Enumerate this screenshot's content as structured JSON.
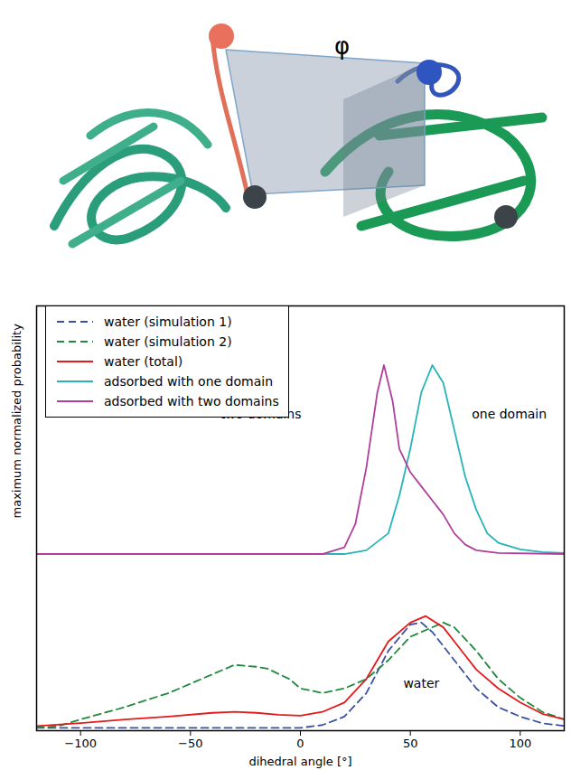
{
  "diagram": {
    "label": "φ"
  },
  "chart_data": {
    "type": "line",
    "xlabel": "dihedral angle [°]",
    "ylabel": "maximum normalized probability",
    "xlim": [
      -120,
      120
    ],
    "xticks": [
      -100,
      -50,
      0,
      50,
      100
    ],
    "ylim": [
      0,
      4.52
    ],
    "yticks": [],
    "tick_labels": "x",
    "legend": "top-left",
    "series": [
      {
        "name": "water (simulation 1)",
        "color": "#3b4fa3",
        "line_style": "dashed",
        "x": [
          -120,
          -100,
          -50,
          0,
          10,
          20,
          30,
          40,
          50,
          55,
          60,
          70,
          80,
          90,
          100,
          110,
          120
        ],
        "values": [
          0.03,
          0.03,
          0.03,
          0.03,
          0.06,
          0.15,
          0.4,
          0.85,
          1.13,
          1.15,
          1.05,
          0.75,
          0.45,
          0.25,
          0.15,
          0.08,
          0.05
        ]
      },
      {
        "name": "water (simulation 2)",
        "color": "#1f8a3c",
        "line_style": "dashed",
        "x": [
          -120,
          -110,
          -100,
          -80,
          -60,
          -40,
          -30,
          -20,
          -15,
          -5,
          0,
          10,
          20,
          30,
          40,
          50,
          60,
          65,
          70,
          80,
          90,
          100,
          110,
          120
        ],
        "values": [
          0.03,
          0.05,
          0.12,
          0.25,
          0.4,
          0.6,
          0.7,
          0.68,
          0.66,
          0.55,
          0.45,
          0.4,
          0.45,
          0.55,
          0.75,
          1.0,
          1.1,
          1.15,
          1.1,
          0.85,
          0.55,
          0.35,
          0.2,
          0.12
        ]
      },
      {
        "name": "water (total)",
        "color": "#e41a1c",
        "line_style": "solid",
        "x": [
          -120,
          -100,
          -80,
          -60,
          -40,
          -30,
          -20,
          -10,
          0,
          10,
          20,
          30,
          40,
          50,
          57,
          65,
          80,
          90,
          100,
          110,
          120
        ],
        "values": [
          0.05,
          0.08,
          0.12,
          0.15,
          0.19,
          0.2,
          0.19,
          0.17,
          0.16,
          0.2,
          0.3,
          0.55,
          0.95,
          1.15,
          1.22,
          1.1,
          0.65,
          0.45,
          0.3,
          0.18,
          0.12
        ]
      },
      {
        "name": "adsorbed with one domain",
        "color": "#27b4b8",
        "line_style": "solid",
        "x": [
          -120,
          20,
          30,
          40,
          45,
          50,
          55,
          60,
          65,
          70,
          75,
          80,
          85,
          90,
          100,
          110,
          120
        ],
        "values": [
          1.88,
          1.88,
          1.92,
          2.1,
          2.5,
          3.0,
          3.6,
          3.89,
          3.7,
          3.2,
          2.7,
          2.35,
          2.1,
          2.0,
          1.93,
          1.9,
          1.89
        ]
      },
      {
        "name": "adsorbed with two domains",
        "color": "#b03f9c",
        "line_style": "solid",
        "x": [
          -120,
          10,
          20,
          25,
          30,
          35,
          38,
          42,
          45,
          50,
          55,
          60,
          65,
          70,
          75,
          80,
          90,
          120
        ],
        "values": [
          1.88,
          1.88,
          1.95,
          2.2,
          2.8,
          3.6,
          3.89,
          3.5,
          3.0,
          2.75,
          2.6,
          2.45,
          2.3,
          2.1,
          1.98,
          1.92,
          1.89,
          1.88
        ]
      }
    ],
    "annotations": [
      {
        "text": "two domains",
        "x": -18,
        "y": 3.37
      },
      {
        "text": "one domain",
        "x": 95,
        "y": 3.37
      },
      {
        "text": "water",
        "x": 55,
        "y": 0.5
      }
    ]
  }
}
